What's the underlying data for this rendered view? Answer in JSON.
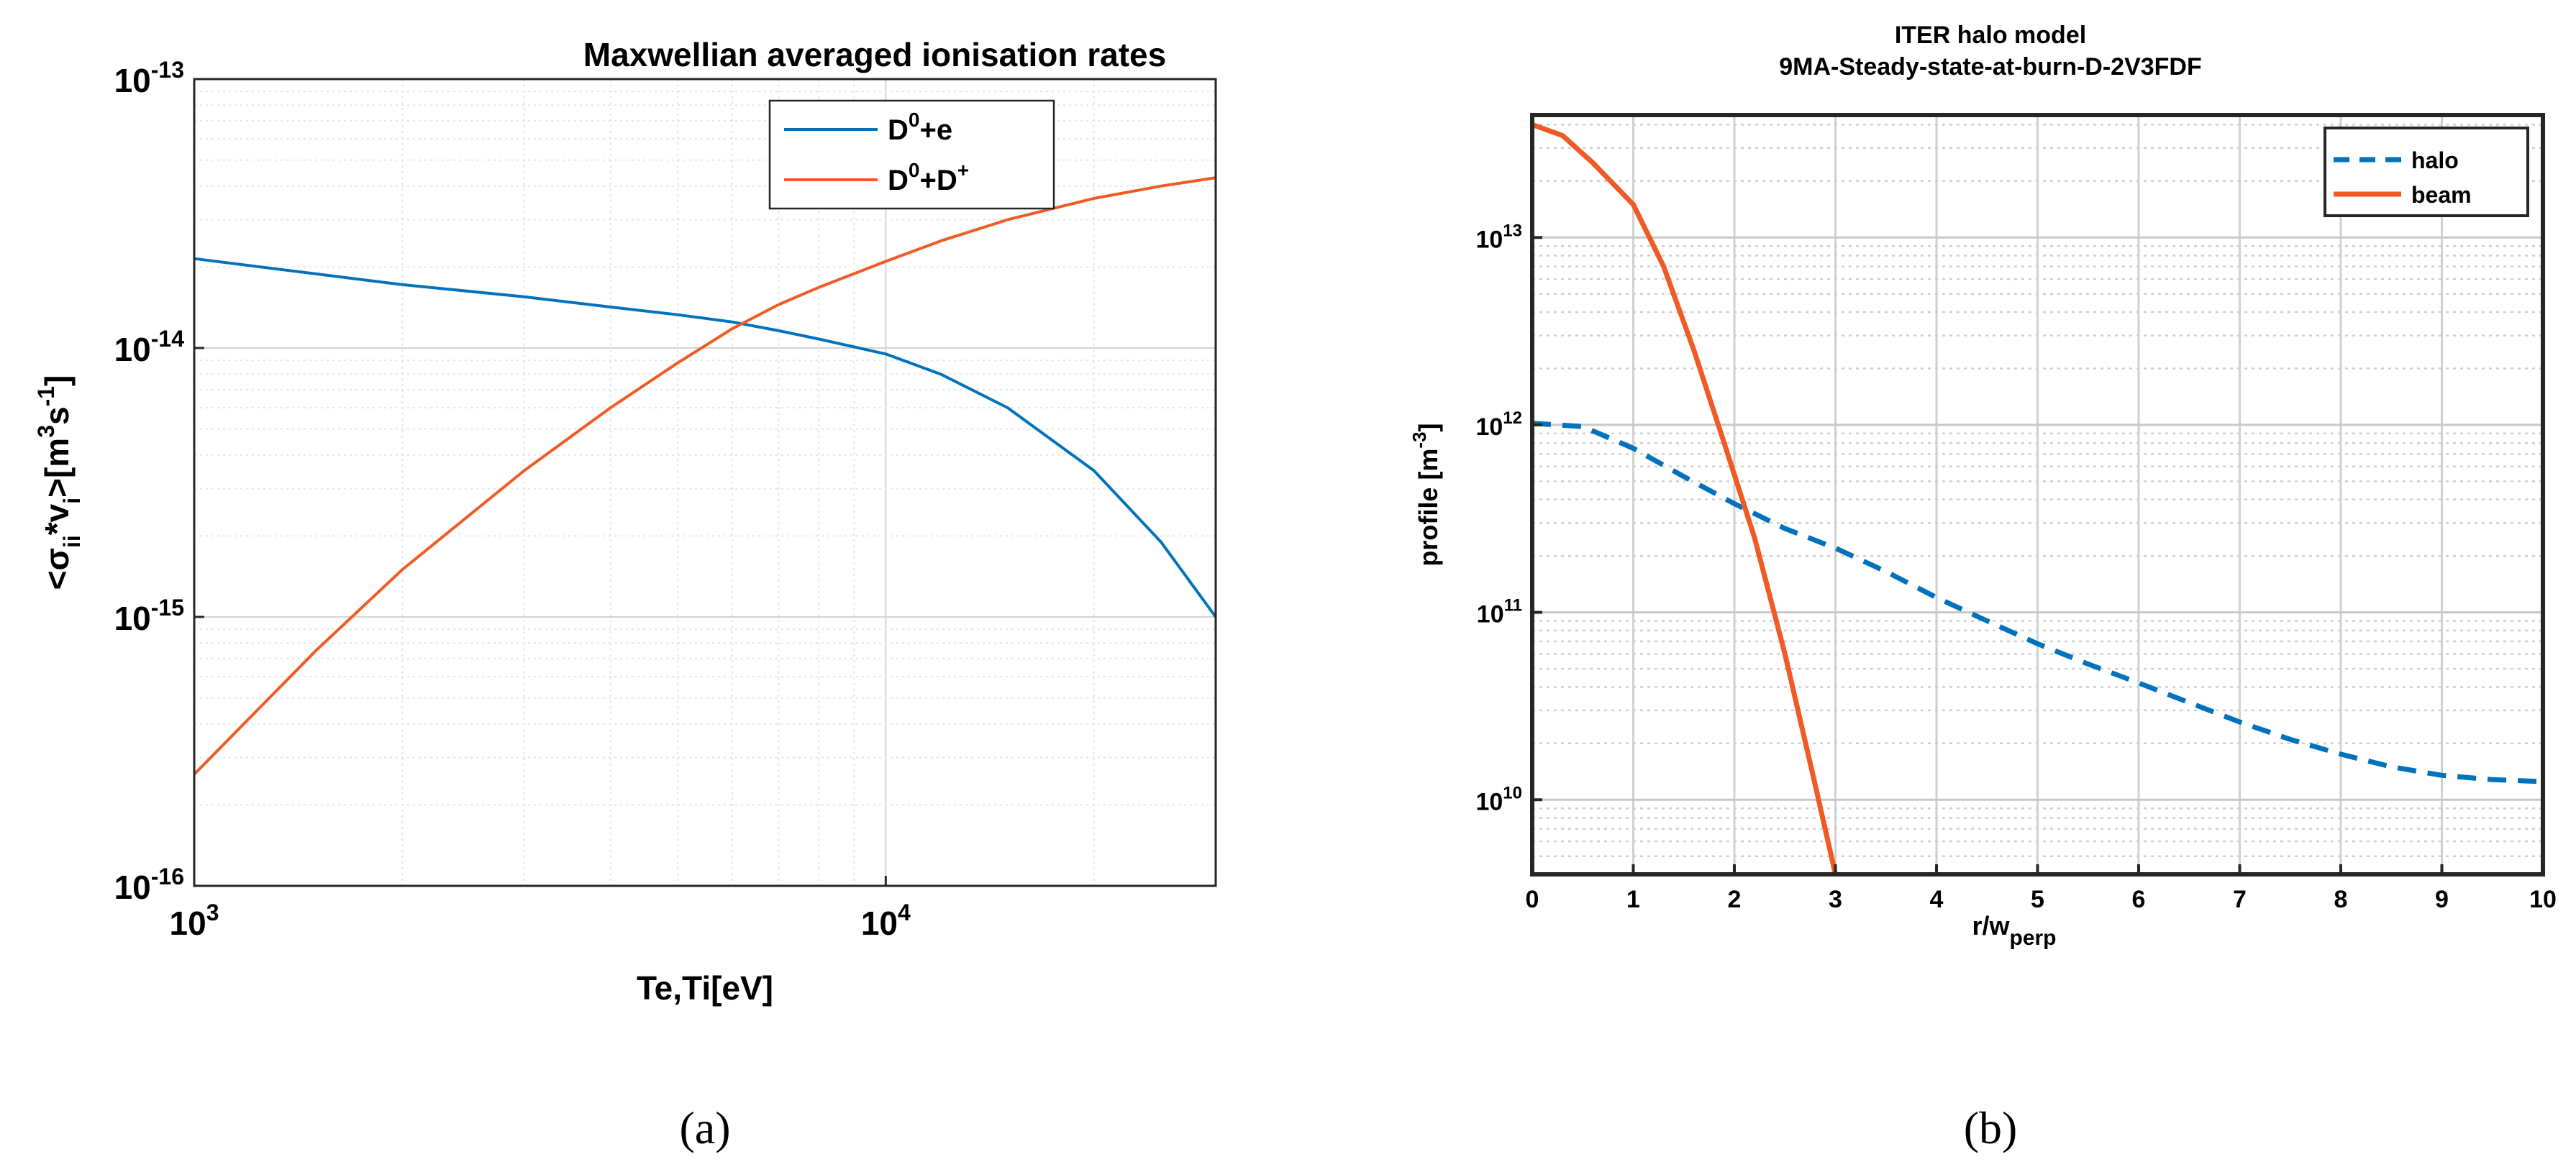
{
  "chart_data": [
    {
      "type": "line",
      "panel_label": "(a)",
      "title": "Maxwellian averaged ionisation rates",
      "xlabel": "Te,Ti[eV]",
      "ylabel_parts": {
        "lt": "<",
        "sigma": "σ",
        "ii": "ii",
        "star_v": "*v",
        "i": "i",
        "gt": ">",
        "unit_open": "[m",
        "three": "3",
        "s": "s",
        "minus_one": "-1",
        "unit_close": "]"
      },
      "x_scale": "log",
      "y_scale": "log",
      "xlim": [
        1000,
        30000
      ],
      "ylim": [
        1e-16,
        1e-13
      ],
      "grid": true,
      "legend_position": "top-right",
      "x_ticks": [
        {
          "value": 1000,
          "base": "10",
          "exp": "3"
        },
        {
          "value": 10000,
          "base": "10",
          "exp": "4"
        }
      ],
      "y_ticks": [
        {
          "value": 1e-16,
          "base": "10",
          "exp": "-16"
        },
        {
          "value": 1e-15,
          "base": "10",
          "exp": "-15"
        },
        {
          "value": 1e-14,
          "base": "10",
          "exp": "-14"
        },
        {
          "value": 1e-13,
          "base": "10",
          "exp": "-13"
        }
      ],
      "series": [
        {
          "legend": {
            "base": "D",
            "sup1": "0",
            "rest": "+e",
            "sup2": ""
          },
          "color": "#0072bd",
          "dash": false,
          "x": [
            1000,
            2000,
            3000,
            4000,
            5000,
            6000,
            7000,
            8000,
            10000,
            12000,
            15000,
            20000,
            25000,
            30000
          ],
          "y": [
            2.15e-14,
            1.72e-14,
            1.55e-14,
            1.42e-14,
            1.33e-14,
            1.25e-14,
            1.16e-14,
            1.08e-14,
            9.5e-15,
            8e-15,
            6e-15,
            3.5e-15,
            1.9e-15,
            1e-15
          ]
        },
        {
          "legend": {
            "base": "D",
            "sup1": "0",
            "rest": "+D",
            "sup2": "+"
          },
          "color": "#f05a24",
          "dash": false,
          "x": [
            1000,
            1500,
            2000,
            3000,
            4000,
            5000,
            6000,
            7000,
            8000,
            10000,
            12000,
            15000,
            20000,
            25000,
            30000
          ],
          "y": [
            2.6e-16,
            7.5e-16,
            1.5e-15,
            3.5e-15,
            6e-15,
            8.8e-15,
            1.18e-14,
            1.45e-14,
            1.68e-14,
            2.1e-14,
            2.5e-14,
            3e-14,
            3.6e-14,
            4e-14,
            4.3e-14
          ]
        }
      ]
    },
    {
      "type": "line",
      "panel_label": "(b)",
      "title_lines": [
        "ITER halo model",
        "9MA-Steady-state-at-burn-D-2V3FDF"
      ],
      "xlabel": {
        "main": "r/w",
        "sub": "perp"
      },
      "ylabel": {
        "main": "profile [m",
        "sup": "-3",
        "close": "]"
      },
      "x_scale": "linear",
      "y_scale": "log",
      "xlim": [
        0,
        10
      ],
      "ylim": [
        4000000000.0,
        45000000000000.0
      ],
      "grid": true,
      "legend_position": "top-right",
      "x_ticks": [
        "0",
        "1",
        "2",
        "3",
        "4",
        "5",
        "6",
        "7",
        "8",
        "9",
        "10"
      ],
      "y_ticks": [
        {
          "value": 10000000000.0,
          "base": "10",
          "exp": "10"
        },
        {
          "value": 100000000000.0,
          "base": "10",
          "exp": "11"
        },
        {
          "value": 1000000000000.0,
          "base": "10",
          "exp": "12"
        },
        {
          "value": 10000000000000.0,
          "base": "10",
          "exp": "13"
        }
      ],
      "series": [
        {
          "name": "halo",
          "color": "#0072bd",
          "dash": true,
          "x": [
            0,
            0.5,
            1,
            1.5,
            2,
            2.5,
            3,
            3.5,
            4,
            4.5,
            5,
            5.5,
            6,
            6.5,
            7,
            7.5,
            8,
            8.5,
            9,
            9.5,
            10
          ],
          "y": [
            1020000000000.0,
            980000000000.0,
            750000000000.0,
            530000000000.0,
            380000000000.0,
            280000000000.0,
            220000000000.0,
            165000000000.0,
            120000000000.0,
            90000000000.0,
            68000000000.0,
            53000000000.0,
            42000000000.0,
            33000000000.0,
            26000000000.0,
            21000000000.0,
            17500000000.0,
            15000000000.0,
            13500000000.0,
            12800000000.0,
            12500000000.0
          ]
        },
        {
          "name": "beam",
          "color": "#f05a24",
          "dash": false,
          "x": [
            0,
            0.3,
            0.6,
            1.0,
            1.3,
            1.6,
            1.9,
            2.2,
            2.5,
            2.8,
            3.0
          ],
          "y": [
            40000000000000.0,
            35000000000000.0,
            25000000000000.0,
            15000000000000.0,
            7000000000000.0,
            2500000000000.0,
            800000000000.0,
            250000000000.0,
            60000000000.0,
            12000000000.0,
            4000000000.0
          ]
        }
      ]
    }
  ]
}
